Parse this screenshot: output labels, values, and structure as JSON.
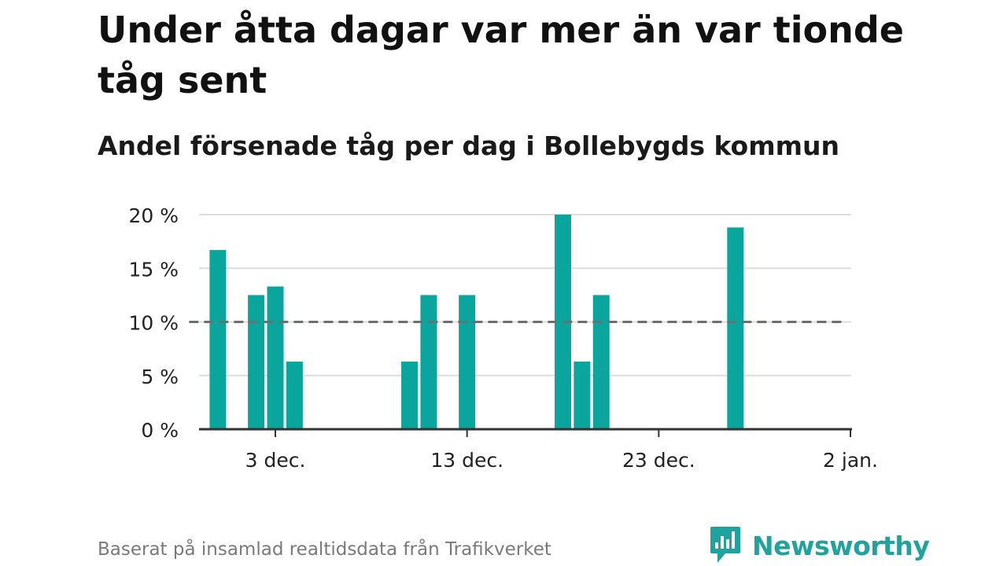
{
  "header": {
    "title": "Under åtta dagar var mer än var tionde tåg sent",
    "subtitle": "Andel försenade tåg per dag i Bollebygds kommun"
  },
  "footer": {
    "source": "Baserat på insamlad realtidsdata från Trafikverket",
    "brand": "Newsworthy",
    "brand_icon": "bar-chart-speech-bubble-icon"
  },
  "colors": {
    "bar": "#0aa59c",
    "reference_line": "#6e6e6e",
    "grid": "#dddddd",
    "axis": "#333333",
    "brand": "#20a39e"
  },
  "chart_data": {
    "type": "bar",
    "title": "Under åtta dagar var mer än var tionde tåg sent",
    "subtitle": "Andel försenade tåg per dag i Bollebygds kommun",
    "xlabel": "",
    "ylabel": "",
    "x_unit": "day",
    "x_ticks": [
      {
        "day": 3,
        "label": "3 dec."
      },
      {
        "day": 13,
        "label": "13 dec."
      },
      {
        "day": 23,
        "label": "23 dec."
      },
      {
        "day": 33,
        "label": "2 jan."
      }
    ],
    "xlim": [
      -1,
      33
    ],
    "ylim": [
      0,
      20
    ],
    "y_ticks": [
      0,
      5,
      10,
      15,
      20
    ],
    "y_tick_labels": [
      "0 %",
      "5 %",
      "10 %",
      "15 %",
      "20 %"
    ],
    "bars": [
      {
        "day": -1,
        "value": 0
      },
      {
        "day": 0,
        "value": 0
      },
      {
        "day": 1,
        "value": 0
      },
      {
        "day": 2,
        "value": 12.5
      },
      {
        "day": 3,
        "value": 13.3
      },
      {
        "day": 4,
        "value": 6.3
      },
      {
        "day": 5,
        "value": 0
      },
      {
        "day": 6,
        "value": 0
      },
      {
        "day": 7,
        "value": 0
      },
      {
        "day": 8,
        "value": 0
      },
      {
        "day": 9,
        "value": 0
      },
      {
        "day": 10,
        "value": 6.3
      },
      {
        "day": 11,
        "value": 12.5
      },
      {
        "day": 12,
        "value": 0
      },
      {
        "day": 13,
        "value": 12.5
      },
      {
        "day": 14,
        "value": 0
      },
      {
        "day": 15,
        "value": 0
      },
      {
        "day": 16,
        "value": 0
      },
      {
        "day": 17,
        "value": 0
      },
      {
        "day": 18,
        "value": 20
      },
      {
        "day": 19,
        "value": 6.3
      },
      {
        "day": 20,
        "value": 12.5
      },
      {
        "day": 21,
        "value": 0
      },
      {
        "day": 22,
        "value": 0
      },
      {
        "day": 23,
        "value": 0
      },
      {
        "day": 24,
        "value": 0
      },
      {
        "day": 25,
        "value": 0
      },
      {
        "day": 26,
        "value": 0
      },
      {
        "day": 27,
        "value": 18.8
      },
      {
        "day": 28,
        "value": 0
      },
      {
        "day": 29,
        "value": 0
      },
      {
        "day": 30,
        "value": 0
      },
      {
        "day": 31,
        "value": 0
      }
    ],
    "extra_bar": {
      "day": 0,
      "value": 16.7
    },
    "reference_line": {
      "value": 10,
      "style": "dashed",
      "x_range": [
        -1.5,
        31
      ]
    },
    "grid": true,
    "legend": "none"
  }
}
